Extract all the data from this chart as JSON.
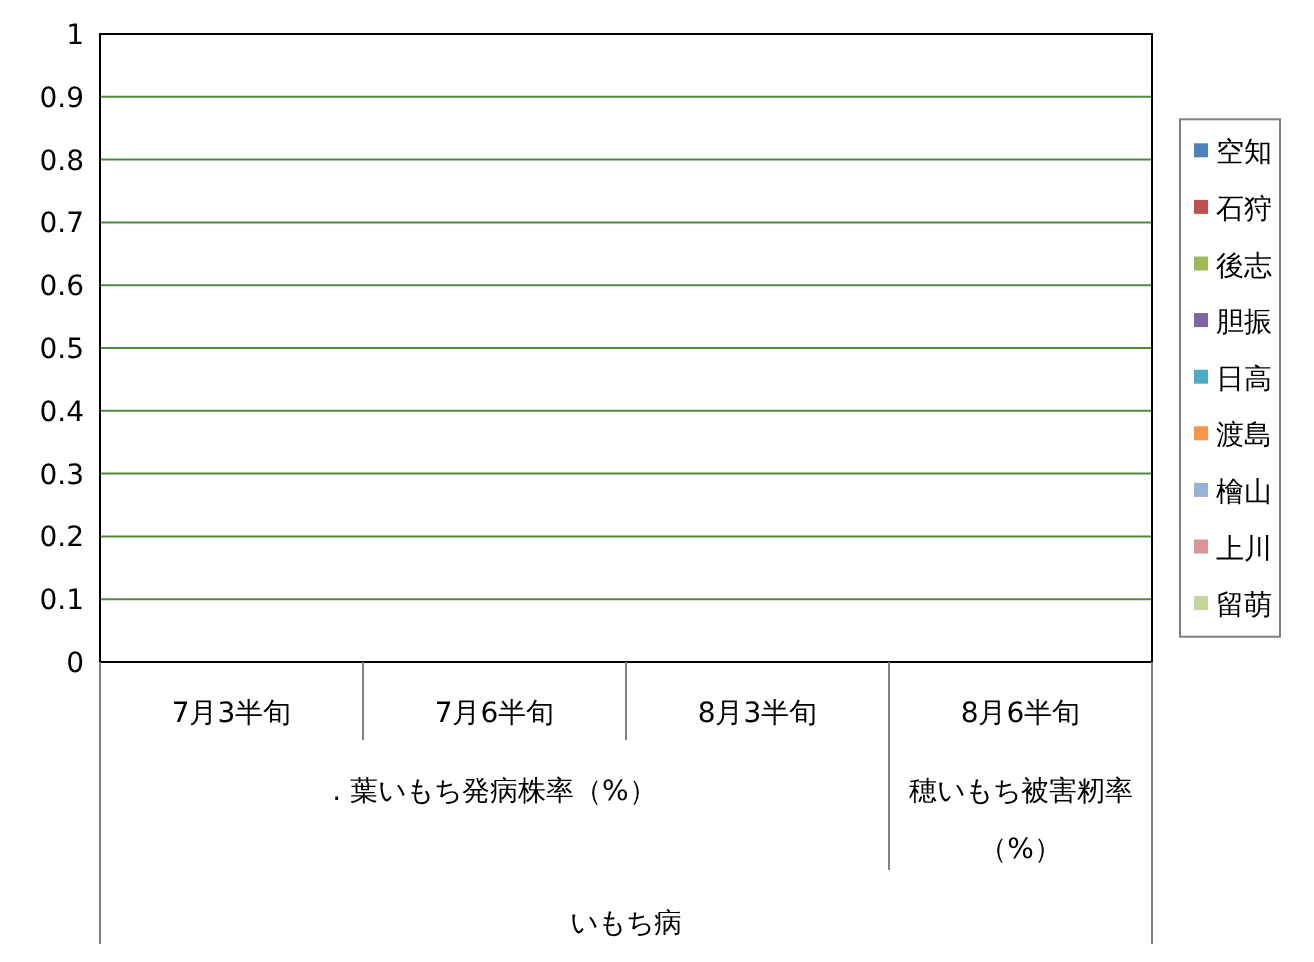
{
  "chart_data": {
    "type": "bar",
    "categories": [
      "7月3半旬",
      "7月6半旬",
      "8月3半旬",
      "8月6半旬"
    ],
    "annotations": [
      ". 葉いもち発病株率（%）",
      "穂いもち被害籾率（%）",
      "いもち病"
    ],
    "series": [
      {
        "name": "空知",
        "color": "#4f81bd",
        "values": [
          0,
          0,
          0,
          0
        ]
      },
      {
        "name": "石狩",
        "color": "#c0504d",
        "values": [
          0,
          0,
          0,
          0
        ]
      },
      {
        "name": "後志",
        "color": "#9bbb59",
        "values": [
          0,
          0,
          0,
          0
        ]
      },
      {
        "name": "胆振",
        "color": "#8064a2",
        "values": [
          0,
          0,
          0,
          0
        ]
      },
      {
        "name": "日高",
        "color": "#4bacc6",
        "values": [
          0,
          0,
          0,
          0
        ]
      },
      {
        "name": "渡島",
        "color": "#f79646",
        "values": [
          0,
          0,
          0,
          0
        ]
      },
      {
        "name": "檜山",
        "color": "#95b3d7",
        "values": [
          0,
          0,
          0,
          0
        ]
      },
      {
        "name": "上川",
        "color": "#da9694",
        "values": [
          0,
          0,
          0,
          0
        ]
      },
      {
        "name": "留萌",
        "color": "#c3d69b",
        "values": [
          0,
          0,
          0,
          0
        ]
      }
    ],
    "ylim": [
      0,
      1
    ],
    "yticks": [
      0,
      0.1,
      0.2,
      0.3,
      0.4,
      0.5,
      0.6,
      0.7,
      0.8,
      0.9,
      1
    ],
    "grid": "y",
    "legend": "right"
  }
}
